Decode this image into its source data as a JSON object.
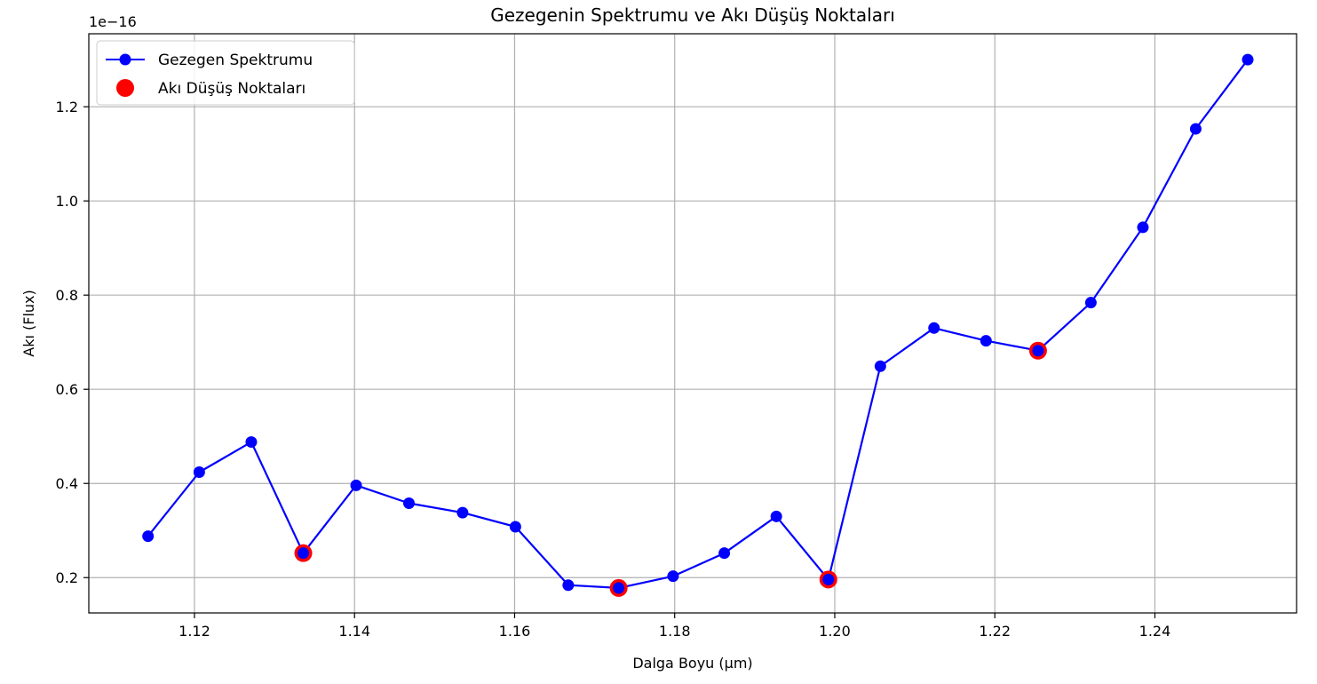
{
  "chart_data": {
    "type": "line",
    "title": "Gezegenin Spektrumu ve Akı Düşüş Noktaları",
    "xlabel": "Dalga Boyu (µm)",
    "ylabel": "Akı (Flux)",
    "y_offset_label": "1e−16",
    "xlim": [
      1.1068,
      1.2577
    ],
    "ylim": [
      0.125,
      1.355
    ],
    "x_ticks": [
      1.12,
      1.14,
      1.16,
      1.18,
      1.2,
      1.22,
      1.24
    ],
    "x_tick_labels": [
      "1.12",
      "1.14",
      "1.16",
      "1.18",
      "1.20",
      "1.22",
      "1.24"
    ],
    "y_ticks": [
      0.2,
      0.4,
      0.6,
      0.8,
      1.0,
      1.2
    ],
    "y_tick_labels": [
      "0.2",
      "0.4",
      "0.6",
      "0.8",
      "1.0",
      "1.2"
    ],
    "grid": true,
    "legend_position": "top-left",
    "series": [
      {
        "name": "Gezegen Spektrumu",
        "color": "#0000ff",
        "style": "line-with-markers",
        "x": [
          1.1142,
          1.1206,
          1.1271,
          1.1336,
          1.1402,
          1.1468,
          1.1535,
          1.1601,
          1.1667,
          1.173,
          1.1798,
          1.1862,
          1.1927,
          1.1992,
          1.2057,
          1.2124,
          1.2189,
          1.2254,
          1.232,
          1.2385,
          1.2451,
          1.2516
        ],
        "y": [
          0.288,
          0.424,
          0.488,
          0.252,
          0.396,
          0.358,
          0.338,
          0.308,
          0.184,
          0.178,
          0.203,
          0.252,
          0.33,
          0.196,
          0.649,
          0.73,
          0.703,
          0.682,
          0.784,
          0.944,
          1.153,
          1.3
        ]
      },
      {
        "name": "Akı Düşüş Noktaları",
        "color": "#ff0000",
        "style": "scatter",
        "x": [
          1.1336,
          1.173,
          1.1992,
          1.2254
        ],
        "y": [
          0.252,
          0.178,
          0.196,
          0.682
        ]
      }
    ]
  }
}
